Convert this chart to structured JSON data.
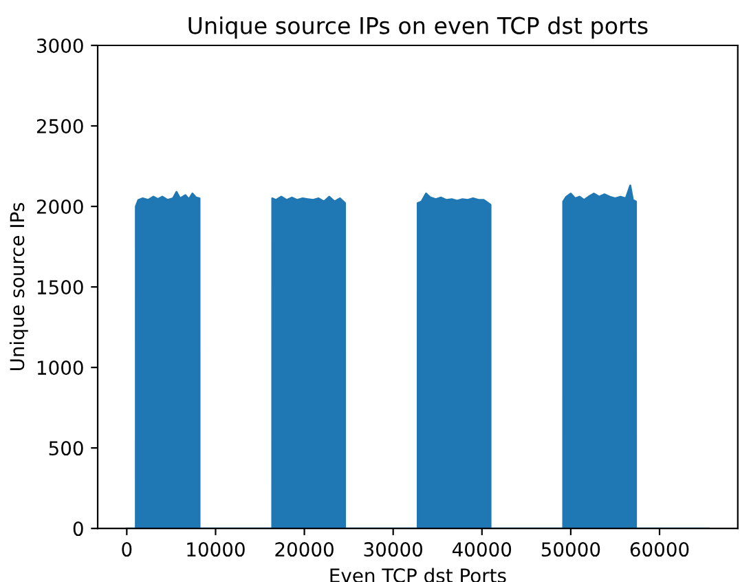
{
  "chart_data": {
    "type": "area",
    "title": "Unique source IPs on even TCP dst ports",
    "xlabel": "Even TCP dst Ports",
    "ylabel": "Unique source IPs",
    "color": "#1f77b4",
    "x": [
      0,
      1022,
      1024,
      1300,
      1800,
      2400,
      3000,
      3500,
      4000,
      4600,
      5200,
      5600,
      6000,
      6600,
      7000,
      7400,
      7800,
      8190,
      8194,
      16382,
      16384,
      16800,
      17400,
      18000,
      18600,
      19200,
      19800,
      20400,
      21000,
      21600,
      22200,
      22800,
      23400,
      24000,
      24576,
      24578,
      32766,
      32768,
      33200,
      33700,
      34200,
      34800,
      35400,
      36000,
      36600,
      37200,
      37800,
      38400,
      39000,
      39600,
      40200,
      40960,
      40962,
      49150,
      49152,
      49500,
      50000,
      50500,
      51000,
      51500,
      52000,
      52600,
      53200,
      53800,
      54400,
      55000,
      55600,
      56200,
      56700,
      57000,
      57344,
      57346,
      65534
    ],
    "values": [
      0,
      0,
      2000,
      2040,
      2050,
      2040,
      2060,
      2045,
      2060,
      2040,
      2050,
      2090,
      2050,
      2070,
      2045,
      2080,
      2055,
      2050,
      0,
      0,
      2050,
      2040,
      2060,
      2040,
      2055,
      2040,
      2050,
      2045,
      2040,
      2050,
      2030,
      2060,
      2030,
      2050,
      2020,
      0,
      0,
      2020,
      2030,
      2080,
      2055,
      2045,
      2055,
      2040,
      2045,
      2035,
      2045,
      2040,
      2050,
      2040,
      2040,
      2010,
      0,
      0,
      2030,
      2060,
      2080,
      2050,
      2060,
      2040,
      2060,
      2080,
      2060,
      2075,
      2060,
      2050,
      2060,
      2050,
      2130,
      2040,
      2030,
      0,
      0
    ],
    "xlim": [
      -3277,
      68811
    ],
    "xticks": [
      0,
      10000,
      20000,
      30000,
      40000,
      50000,
      60000
    ],
    "ylim": [
      0,
      3000
    ],
    "yticks": [
      0,
      500,
      1000,
      1500,
      2000,
      2500,
      3000
    ]
  }
}
